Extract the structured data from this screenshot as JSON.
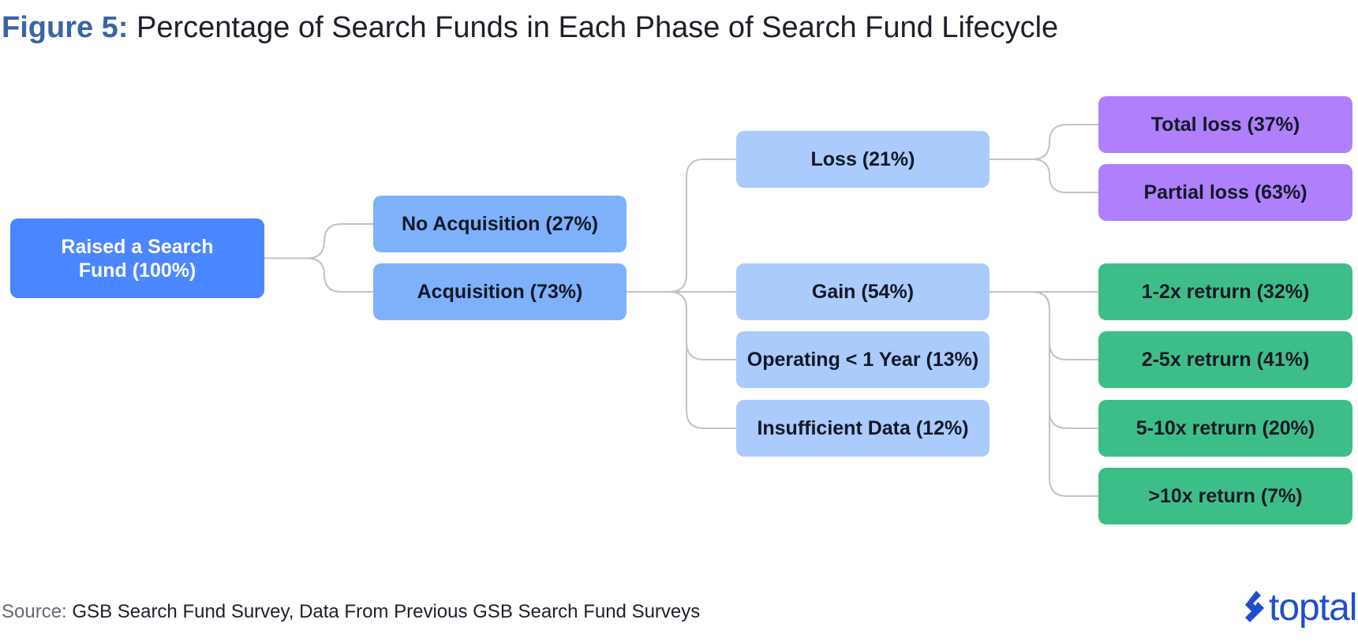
{
  "title": {
    "figure_number": "Figure 5:",
    "text": " Percentage of Search Funds in Each Phase of Search Fund Lifecycle"
  },
  "nodes": {
    "root": {
      "line1": "Raised a Search",
      "line2": "Fund (100%)"
    },
    "no_acquisition": "No Acquisition (27%)",
    "acquisition": "Acquisition (73%)",
    "loss": "Loss (21%)",
    "gain": "Gain (54%)",
    "operating": "Operating < 1 Year (13%)",
    "insufficient": "Insufficient Data (12%)",
    "total_loss": "Total loss (37%)",
    "partial_loss": "Partial loss (63%)",
    "return_1_2x": "1-2x retrurn (32%)",
    "return_2_5x": "2-5x retrurn (41%)",
    "return_5_10x": "5-10x retrurn (20%)",
    "return_10x": ">10x return (7%)"
  },
  "source": {
    "label": "Source:",
    "text": " GSB Search Fund Survey, Data From Previous GSB Search Fund Surveys"
  },
  "logo": {
    "text": "toptal",
    "icon": "toptal-logo-icon"
  },
  "colors": {
    "title_accent": "#3b64a4",
    "root": "#4a86ff",
    "level1": "#7fb1fb",
    "level2": "#abcbfd",
    "loss_outcomes": "#b07ffb",
    "gain_outcomes": "#3dbe88",
    "connector": "#c4c4c4",
    "logo": "#204ecf"
  }
}
